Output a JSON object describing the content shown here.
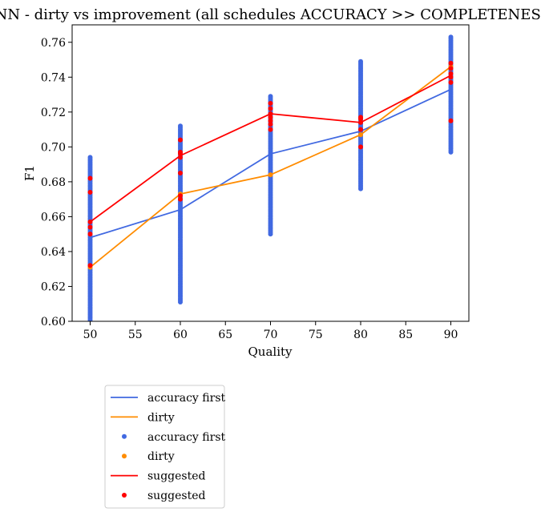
{
  "chart_data": {
    "type": "scatter",
    "title": "KNN - dirty vs improvement (all schedules ACCURACY >> COMPLETENESS)",
    "xlabel": "Quality",
    "ylabel": "F1",
    "xlim": [
      48,
      92
    ],
    "ylim": [
      0.6,
      0.77
    ],
    "xticks": [
      50,
      55,
      60,
      65,
      70,
      75,
      80,
      85,
      90
    ],
    "xtick_labels": [
      "50",
      "55",
      "60",
      "65",
      "70",
      "75",
      "80",
      "85",
      "90"
    ],
    "yticks": [
      0.6,
      0.62,
      0.64,
      0.66,
      0.68,
      0.7,
      0.72,
      0.74,
      0.76
    ],
    "ytick_labels": [
      "0.60",
      "0.62",
      "0.64",
      "0.66",
      "0.68",
      "0.70",
      "0.72",
      "0.74",
      "0.76"
    ],
    "grid": false,
    "legend_placement": "below",
    "colors": {
      "accuracy_first": "#4169e1",
      "dirty": "#ff8c00",
      "suggested": "#ff0000"
    },
    "lines": [
      {
        "name": "accuracy first",
        "color": "#4169e1",
        "x": [
          50,
          60,
          70,
          80,
          90
        ],
        "y": [
          0.648,
          0.664,
          0.696,
          0.709,
          0.733
        ]
      },
      {
        "name": "dirty",
        "color": "#ff8c00",
        "x": [
          50,
          60,
          70,
          80,
          90
        ],
        "y": [
          0.631,
          0.673,
          0.684,
          0.707,
          0.746
        ]
      },
      {
        "name": "suggested",
        "color": "#ff0000",
        "x": [
          50,
          60,
          70,
          80,
          90
        ],
        "y": [
          0.657,
          0.695,
          0.719,
          0.714,
          0.741
        ]
      }
    ],
    "scatter_ranges": [
      {
        "name": "accuracy first",
        "color": "#4169e1",
        "columns": [
          {
            "x": 50,
            "ymin": 0.6,
            "ymax": 0.694
          },
          {
            "x": 60,
            "ymin": 0.611,
            "ymax": 0.712
          },
          {
            "x": 70,
            "ymin": 0.65,
            "ymax": 0.729
          },
          {
            "x": 80,
            "ymin": 0.676,
            "ymax": 0.749
          },
          {
            "x": 90,
            "ymin": 0.697,
            "ymax": 0.763
          }
        ]
      }
    ],
    "scatter_points": [
      {
        "name": "dirty",
        "color": "#ff8c00",
        "x": [
          50,
          60,
          70,
          80,
          90
        ],
        "y": [
          0.631,
          0.673,
          0.684,
          0.707,
          0.746
        ]
      },
      {
        "name": "suggested",
        "color": "#ff0000",
        "x": [
          50,
          50,
          50,
          50,
          50,
          50,
          60,
          60,
          60,
          60,
          60,
          60,
          60,
          70,
          70,
          70,
          70,
          70,
          70,
          70,
          80,
          80,
          80,
          80,
          80,
          90,
          90,
          90,
          90,
          90,
          90
        ],
        "y": [
          0.682,
          0.674,
          0.657,
          0.654,
          0.65,
          0.632,
          0.704,
          0.697,
          0.696,
          0.694,
          0.685,
          0.672,
          0.67,
          0.725,
          0.722,
          0.719,
          0.717,
          0.715,
          0.713,
          0.71,
          0.717,
          0.716,
          0.714,
          0.71,
          0.7,
          0.748,
          0.745,
          0.742,
          0.74,
          0.737,
          0.715
        ]
      }
    ],
    "legend": [
      {
        "label": "accuracy first",
        "kind": "line",
        "color": "#4169e1"
      },
      {
        "label": "dirty",
        "kind": "line",
        "color": "#ff8c00"
      },
      {
        "label": "accuracy first",
        "kind": "marker",
        "color": "#4169e1"
      },
      {
        "label": "dirty",
        "kind": "marker",
        "color": "#ff8c00"
      },
      {
        "label": "suggested",
        "kind": "line",
        "color": "#ff0000"
      },
      {
        "label": "suggested",
        "kind": "marker",
        "color": "#ff0000"
      }
    ]
  }
}
